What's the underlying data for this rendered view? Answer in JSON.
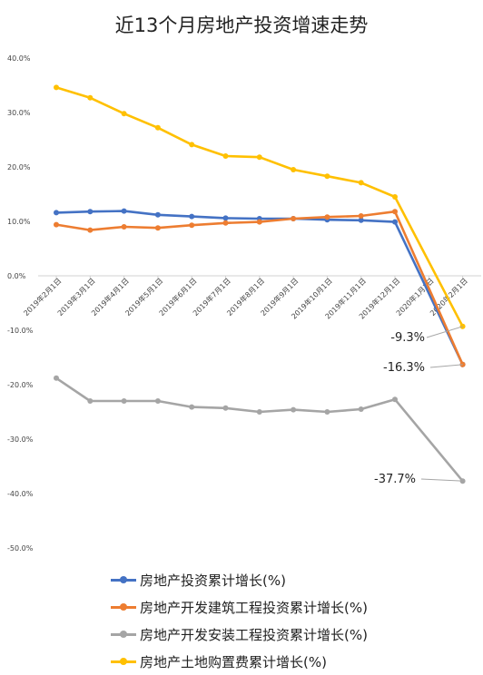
{
  "chart_data": {
    "type": "line",
    "title": "近13个月房地产投资增速走势",
    "categories": [
      "2019年2月1日",
      "2019年3月1日",
      "2019年4月1日",
      "2019年5月1日",
      "2019年6月1日",
      "2019年7月1日",
      "2019年8月1日",
      "2019年9月1日",
      "2019年10月1日",
      "2019年11月1日",
      "2019年12月1日",
      "2020年1月1日",
      "2020年2月1日"
    ],
    "y_tick_labels": [
      "40.0%",
      "30.0%",
      "20.0%",
      "10.0%",
      "0.0%",
      "-10.0%",
      "-20.0%",
      "-30.0%",
      "-40.0%",
      "-50.0%"
    ],
    "ylim": [
      -50,
      40
    ],
    "grid": false,
    "legend_position": "bottom",
    "series": [
      {
        "name": "房地产投资累计增长(%)",
        "color": "#4472C4",
        "values": [
          11.6,
          11.8,
          11.9,
          11.2,
          10.9,
          10.6,
          10.5,
          10.5,
          10.3,
          10.2,
          9.9,
          null,
          -16.3
        ]
      },
      {
        "name": "房地产开发建筑工程投资累计增长(%)",
        "color": "#ED7D31",
        "values": [
          9.4,
          8.4,
          9.0,
          8.8,
          9.3,
          9.7,
          9.9,
          10.5,
          10.8,
          11.0,
          11.8,
          null,
          -16.3
        ]
      },
      {
        "name": "房地产开发安装工程投资累计增长(%)",
        "color": "#A5A5A5",
        "values": [
          -18.8,
          -23.0,
          -23.0,
          -23.0,
          -24.1,
          -24.3,
          -25.0,
          -24.6,
          -25.0,
          -24.5,
          -22.7,
          null,
          -37.7
        ]
      },
      {
        "name": "房地产土地购置费累计增长(%)",
        "color": "#FFC000",
        "values": [
          34.6,
          32.7,
          29.8,
          27.2,
          24.1,
          22.0,
          21.8,
          19.5,
          18.3,
          17.1,
          14.5,
          null,
          -9.3
        ]
      }
    ],
    "annotations": [
      "-9.3%",
      "-16.3%",
      "-37.7%"
    ]
  }
}
